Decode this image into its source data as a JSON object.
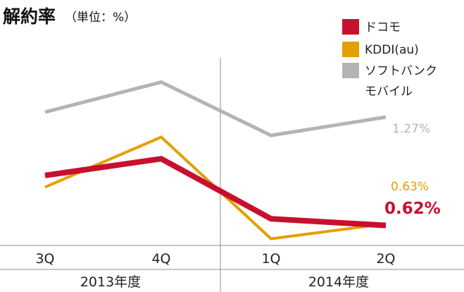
{
  "chart_data": {
    "type": "line",
    "title": "解約率",
    "subtitle": "（単位：%）",
    "categories": [
      "3Q",
      "4Q",
      "1Q",
      "2Q"
    ],
    "year_groups": [
      {
        "label": "2013年度",
        "categories": [
          "3Q",
          "4Q"
        ]
      },
      {
        "label": "2014年度",
        "categories": [
          "1Q",
          "2Q"
        ]
      }
    ],
    "series": [
      {
        "name": "ドコモ",
        "color": "#c8102e",
        "values": [
          0.92,
          1.02,
          0.66,
          0.62
        ],
        "end_label": "0.62%"
      },
      {
        "name": "KDDI(au)",
        "color": "#e3a000",
        "values": [
          0.85,
          1.15,
          0.54,
          0.63
        ],
        "end_label": "0.63%"
      },
      {
        "name": "ソフトバンクモバイル",
        "color": "#b4b4b4",
        "values": [
          1.3,
          1.48,
          1.16,
          1.27
        ],
        "end_label": "1.27%"
      }
    ],
    "legend": {
      "placement": "top-right",
      "entries": [
        {
          "lines": [
            "ドコモ"
          ]
        },
        {
          "lines": [
            "KDDI(au)"
          ]
        },
        {
          "lines": [
            "ソフトバンク",
            "モバイル"
          ]
        }
      ]
    },
    "ylim": [
      0.5,
      1.6
    ],
    "grid": false,
    "xlabel": "",
    "ylabel": ""
  }
}
